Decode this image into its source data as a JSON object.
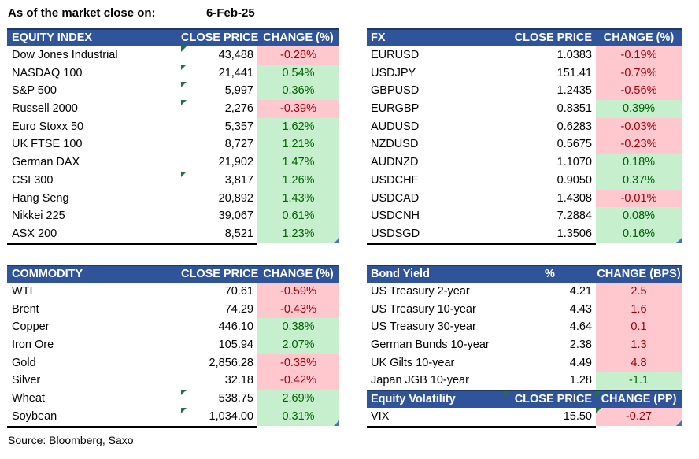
{
  "meta": {
    "as_of_label": "As of the market close on:",
    "as_of_date": "6-Feb-25",
    "source": "Source: Bloomberg, Saxo"
  },
  "colors": {
    "header_bg": "#30549A",
    "header_border": "#1F3864",
    "positive_bg": "#C6EFCE",
    "positive_text": "#006100",
    "negative_bg": "#FFC7CE",
    "negative_text": "#9C0006",
    "flag_green": "#217346",
    "corner_blue": "#4472C4"
  },
  "tables": {
    "equity": {
      "headers": [
        "EQUITY INDEX",
        "CLOSE PRICE",
        "CHANGE (%)"
      ],
      "rows": [
        {
          "name": "Dow Jones Industrial",
          "price": "43,488",
          "change": "-0.28%",
          "dir": "neg",
          "flag_price": true
        },
        {
          "name": "NASDAQ 100",
          "price": "21,441",
          "change": "0.54%",
          "dir": "pos",
          "flag_price": true
        },
        {
          "name": "S&P 500",
          "price": "5,997",
          "change": "0.36%",
          "dir": "pos",
          "flag_price": true
        },
        {
          "name": "Russell 2000",
          "price": "2,276",
          "change": "-0.39%",
          "dir": "neg",
          "flag_price": true
        },
        {
          "name": "Euro Stoxx 50",
          "price": "5,357",
          "change": "1.62%",
          "dir": "pos"
        },
        {
          "name": "UK FTSE 100",
          "price": "8,727",
          "change": "1.21%",
          "dir": "pos"
        },
        {
          "name": "German DAX",
          "price": "21,902",
          "change": "1.47%",
          "dir": "pos"
        },
        {
          "name": "CSI 300",
          "price": "3,817",
          "change": "1.26%",
          "dir": "pos",
          "flag_price": true
        },
        {
          "name": "Hang Seng",
          "price": "20,892",
          "change": "1.43%",
          "dir": "pos"
        },
        {
          "name": "Nikkei 225",
          "price": "39,067",
          "change": "0.61%",
          "dir": "pos"
        },
        {
          "name": "ASX 200",
          "price": "8,521",
          "change": "1.23%",
          "dir": "pos",
          "corner": true
        }
      ]
    },
    "fx": {
      "headers": [
        "FX",
        "CLOSE PRICE",
        "CHANGE (%)"
      ],
      "rows": [
        {
          "name": "EURUSD",
          "price": "1.0383",
          "change": "-0.19%",
          "dir": "neg"
        },
        {
          "name": "USDJPY",
          "price": "151.41",
          "change": "-0.79%",
          "dir": "neg"
        },
        {
          "name": "GBPUSD",
          "price": "1.2435",
          "change": "-0.56%",
          "dir": "neg"
        },
        {
          "name": "EURGBP",
          "price": "0.8351",
          "change": "0.39%",
          "dir": "pos"
        },
        {
          "name": "AUDUSD",
          "price": "0.6283",
          "change": "-0.03%",
          "dir": "neg"
        },
        {
          "name": "NZDUSD",
          "price": "0.5675",
          "change": "-0.23%",
          "dir": "neg"
        },
        {
          "name": "AUDNZD",
          "price": "1.1070",
          "change": "0.18%",
          "dir": "pos"
        },
        {
          "name": "USDCHF",
          "price": "0.9050",
          "change": "0.37%",
          "dir": "pos"
        },
        {
          "name": "USDCAD",
          "price": "1.4308",
          "change": "-0.01%",
          "dir": "neg"
        },
        {
          "name": "USDCNH",
          "price": "7.2884",
          "change": "0.08%",
          "dir": "pos"
        },
        {
          "name": "USDSGD",
          "price": "1.3506",
          "change": "0.16%",
          "dir": "pos",
          "corner": true
        }
      ]
    },
    "commodity": {
      "headers": [
        "COMMODITY",
        "CLOSE PRICE",
        "CHANGE (%)"
      ],
      "rows": [
        {
          "name": "WTI",
          "price": "70.61",
          "change": "-0.59%",
          "dir": "neg"
        },
        {
          "name": "Brent",
          "price": "74.29",
          "change": "-0.43%",
          "dir": "neg"
        },
        {
          "name": "Copper",
          "price": "446.10",
          "change": "0.38%",
          "dir": "pos"
        },
        {
          "name": "Iron Ore",
          "price": "105.94",
          "change": "2.07%",
          "dir": "pos"
        },
        {
          "name": "Gold",
          "price": "2,856.28",
          "change": "-0.38%",
          "dir": "neg"
        },
        {
          "name": "Silver",
          "price": "32.18",
          "change": "-0.42%",
          "dir": "neg"
        },
        {
          "name": "Wheat",
          "price": "538.75",
          "change": "2.69%",
          "dir": "pos",
          "flag_price": true
        },
        {
          "name": "Soybean",
          "price": "1,034.00",
          "change": "0.31%",
          "dir": "pos",
          "flag_price": true,
          "corner": true
        }
      ]
    },
    "bond": {
      "headers": [
        "Bond Yield",
        "%",
        "CHANGE (BPS)"
      ],
      "price_header_align": "center",
      "rows": [
        {
          "name": "US Treasury 2-year",
          "price": "4.21",
          "change": "2.5",
          "dir": "neg"
        },
        {
          "name": "US Treasury 10-year",
          "price": "4.43",
          "change": "1.6",
          "dir": "neg"
        },
        {
          "name": "US Treasury 30-year",
          "price": "4.64",
          "change": "0.1",
          "dir": "neg"
        },
        {
          "name": "German Bunds 10-year",
          "price": "2.38",
          "change": "1.3",
          "dir": "neg"
        },
        {
          "name": "UK Gilts 10-year",
          "price": "4.49",
          "change": "4.8",
          "dir": "neg"
        },
        {
          "name": "Japan JGB 10-year",
          "price": "1.28",
          "change": "-1.1",
          "dir": "pos"
        }
      ]
    },
    "volatility": {
      "headers": [
        "Equity Volatility",
        "CLOSE PRICE",
        "CHANGE (PP)"
      ],
      "header_flags": [
        "price",
        "change"
      ],
      "rows": [
        {
          "name": "VIX",
          "price": "15.50",
          "change": "-0.27",
          "dir": "neg",
          "flag_change": true,
          "corner": true
        }
      ]
    }
  }
}
